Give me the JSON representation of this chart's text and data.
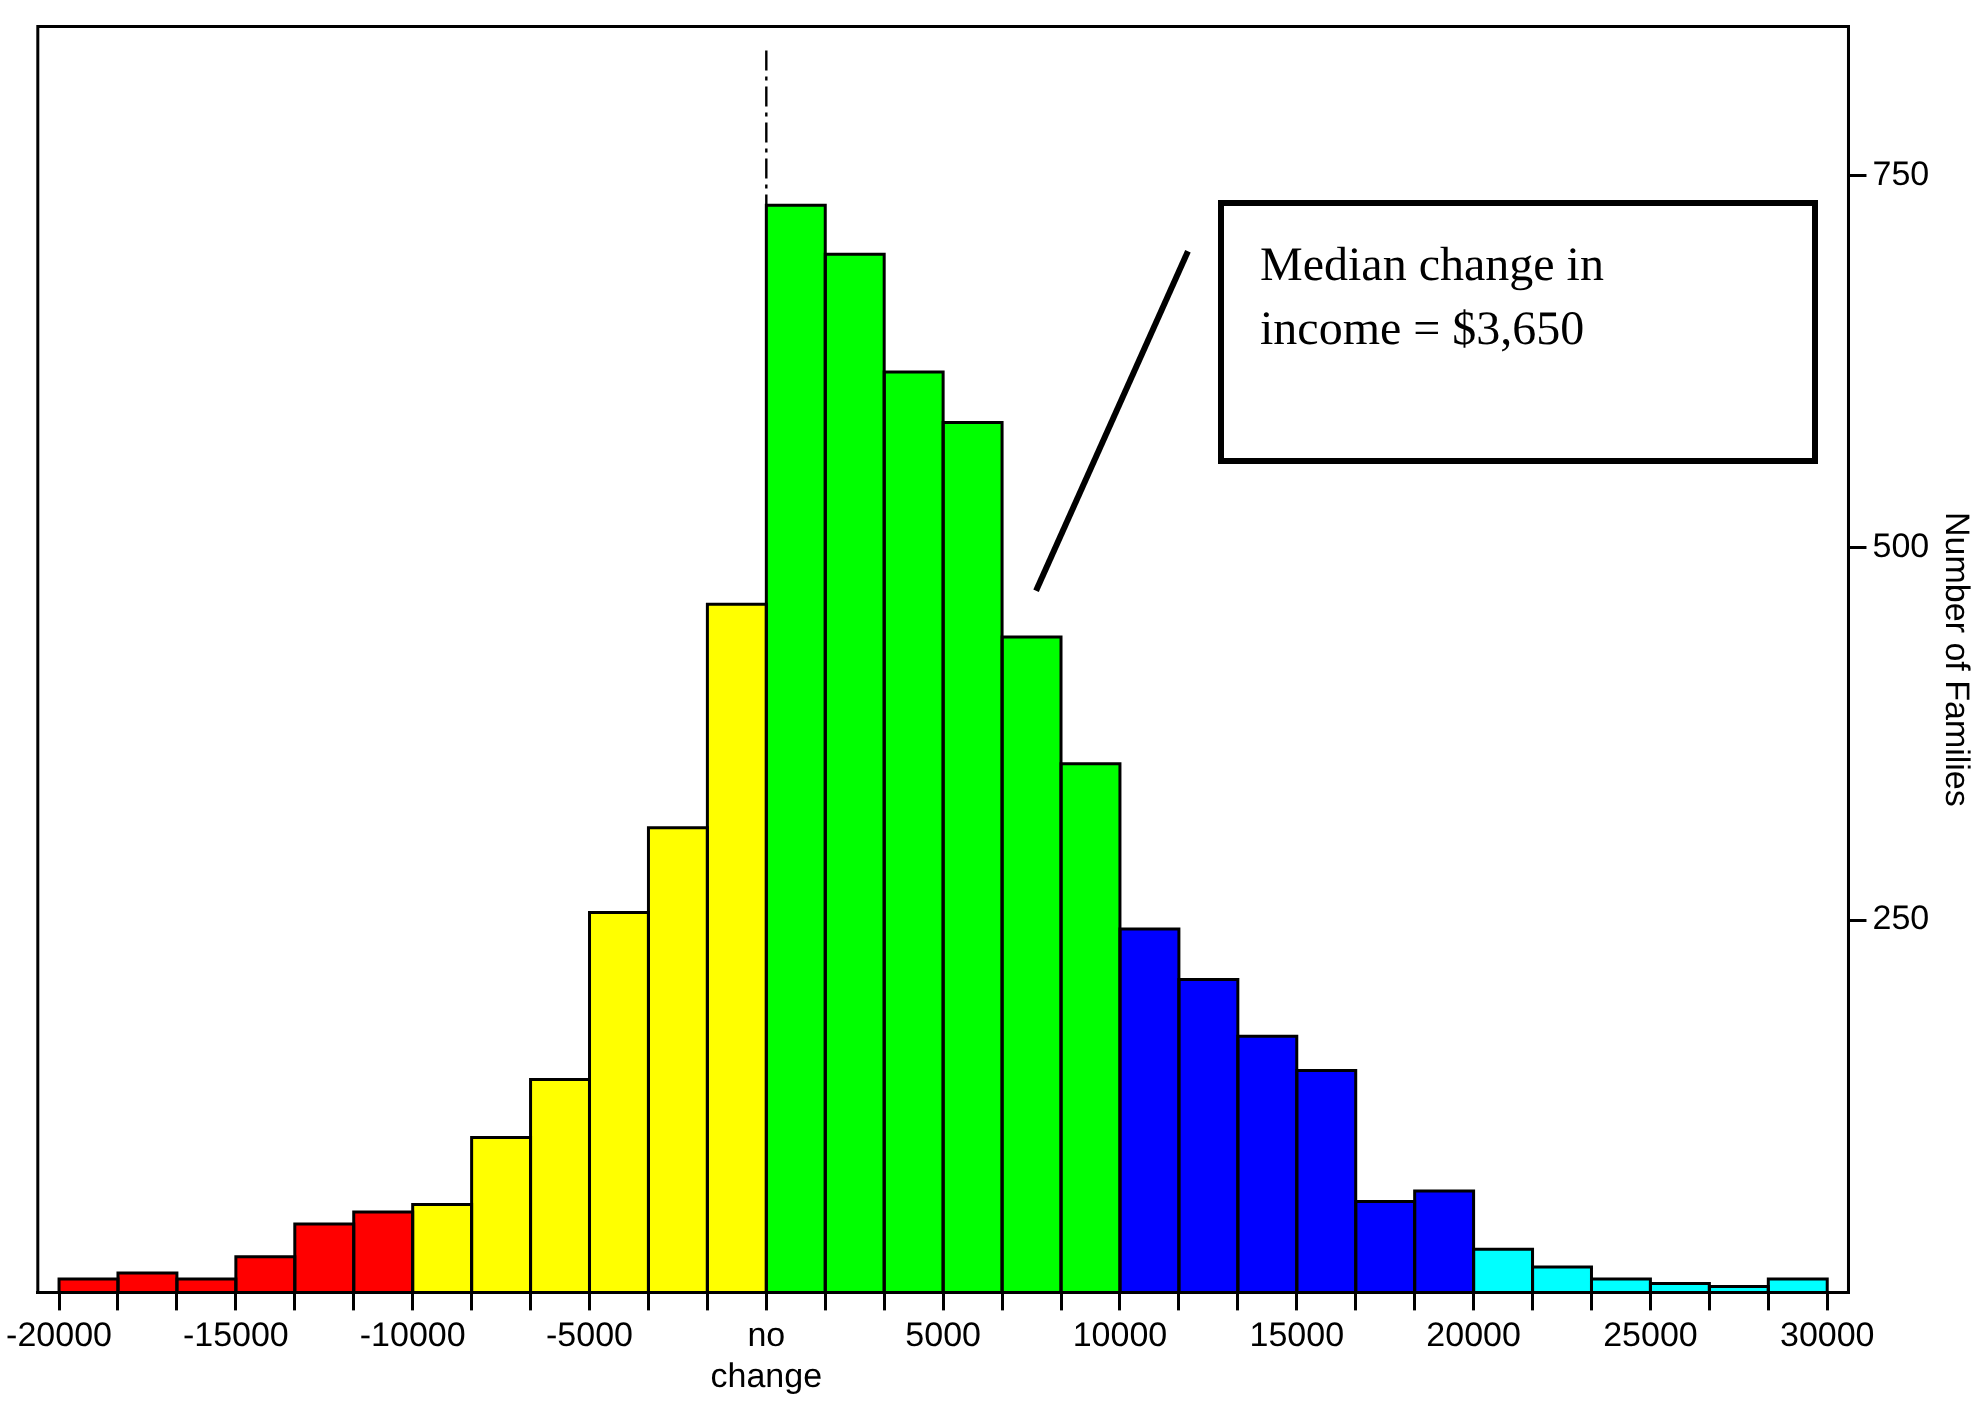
{
  "chart_data": {
    "type": "histogram",
    "ylabel": "Number of Families",
    "bins": [
      -20000,
      -18333,
      -16667,
      -15000,
      -13333,
      -11667,
      -10000,
      -8333,
      -6667,
      -5000,
      -3333,
      -1667,
      0,
      1667,
      3333,
      5000,
      6667,
      8333,
      10000,
      11667,
      13333,
      15000,
      16667,
      18333,
      20000,
      21667,
      23333,
      25000,
      26667,
      28333,
      30000
    ],
    "values": [
      9,
      13,
      9,
      24,
      46,
      54,
      59,
      104,
      143,
      255,
      312,
      462,
      730,
      697,
      618,
      584,
      440,
      355,
      244,
      210,
      172,
      149,
      61,
      68,
      29,
      17,
      9,
      6,
      4,
      9
    ],
    "colors": [
      "#ff0000",
      "#ff0000",
      "#ff0000",
      "#ff0000",
      "#ff0000",
      "#ff0000",
      "#ffff00",
      "#ffff00",
      "#ffff00",
      "#ffff00",
      "#ffff00",
      "#ffff00",
      "#00ff00",
      "#00ff00",
      "#00ff00",
      "#00ff00",
      "#00ff00",
      "#00ff00",
      "#0000ff",
      "#0000ff",
      "#0000ff",
      "#0000ff",
      "#0000ff",
      "#0000ff",
      "#00ffff",
      "#00ffff",
      "#00ffff",
      "#00ffff",
      "#00ffff",
      "#00ffff"
    ],
    "xlim": [
      -20600,
      30600
    ],
    "ylim": [
      0,
      850
    ],
    "xticks": [
      -20000,
      {
        "value": -18333,
        "label": null
      },
      {
        "value": -16667,
        "label": null
      },
      -15000,
      {
        "value": -13333,
        "label": null
      },
      {
        "value": -11667,
        "label": null
      },
      -10000,
      {
        "value": -8333,
        "label": null
      },
      {
        "value": -6667,
        "label": null
      },
      -5000,
      {
        "value": -3333,
        "label": null
      },
      {
        "value": -1667,
        "label": null
      },
      {
        "value": 0,
        "label": "no change"
      },
      {
        "value": 1667,
        "label": null
      },
      {
        "value": 3333,
        "label": null
      },
      5000,
      {
        "value": 6667,
        "label": null
      },
      {
        "value": 8333,
        "label": null
      },
      10000,
      {
        "value": 11667,
        "label": null
      },
      {
        "value": 13333,
        "label": null
      },
      15000,
      {
        "value": 16667,
        "label": null
      },
      {
        "value": 18333,
        "label": null
      },
      20000,
      {
        "value": 21667,
        "label": null
      },
      {
        "value": 23333,
        "label": null
      },
      25000,
      {
        "value": 26667,
        "label": null
      },
      {
        "value": 28333,
        "label": null
      },
      30000
    ],
    "yticks": [
      250,
      500,
      750
    ],
    "ref_lines": [
      {
        "axis": "x",
        "value": 0,
        "line_style": "dashed",
        "color": "#000000"
      }
    ],
    "annotations": [
      "Median change in income = $3,650"
    ],
    "grid": false,
    "legend": false
  }
}
